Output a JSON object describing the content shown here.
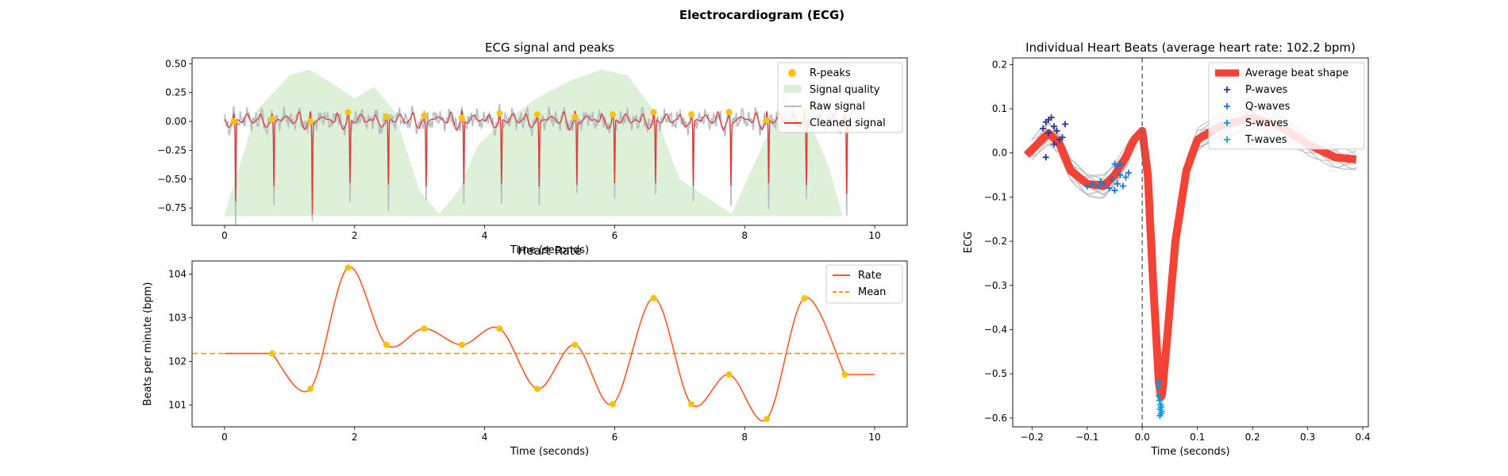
{
  "figure": {
    "title": "Electrocardiogram (ECG)"
  },
  "chart_data": [
    {
      "type": "line",
      "title": "ECG signal and peaks",
      "xlabel": "Time (seconds)",
      "ylabel": "",
      "xlim": [
        -0.5,
        10.5
      ],
      "ylim": [
        -0.9,
        0.55
      ],
      "xticks": [
        0,
        2,
        4,
        6,
        8,
        10
      ],
      "yticks": [
        -0.75,
        -0.5,
        -0.25,
        0.0,
        0.25,
        0.5
      ],
      "ytick_labels": [
        "−0.75",
        "−0.50",
        "−0.25",
        "0.00",
        "0.25",
        "0.50"
      ],
      "legend": {
        "position": "top-right",
        "entries": [
          "R-peaks",
          "Signal quality",
          "Raw signal",
          "Cleaned signal"
        ]
      },
      "colors": {
        "rpeaks": "#FFC200",
        "quality": "#DFF0D8",
        "raw": "#B0BEC5",
        "cleaned": "#E53935"
      },
      "r_peaks_x": [
        0.14,
        0.73,
        1.32,
        1.9,
        2.49,
        3.07,
        3.65,
        4.23,
        4.81,
        5.39,
        5.97,
        6.6,
        7.18,
        7.76,
        8.34,
        8.92,
        9.54
      ],
      "r_peaks_y": [
        0.0,
        0.02,
        0.0,
        0.08,
        0.04,
        0.05,
        0.03,
        0.07,
        0.06,
        0.04,
        0.06,
        0.08,
        0.06,
        0.08,
        0.01,
        0.09,
        0.1
      ],
      "r_peak_depth": [
        -0.7,
        -0.55,
        -0.8,
        -0.55,
        -0.55,
        -0.55,
        -0.55,
        -0.55,
        -0.55,
        -0.55,
        -0.55,
        -0.55,
        -0.55,
        -0.55,
        -0.55,
        -0.55,
        -0.62
      ],
      "signal_quality": {
        "x": [
          0,
          0.5,
          1.0,
          1.3,
          1.6,
          2.0,
          2.3,
          2.6,
          3.0,
          3.3,
          3.6,
          3.9,
          4.3,
          4.8,
          5.3,
          5.8,
          6.2,
          6.6,
          7.0,
          7.4,
          7.8,
          8.2,
          8.6,
          9.0,
          9.3,
          9.5
        ],
        "y": [
          -0.8,
          0.1,
          0.4,
          0.45,
          0.35,
          0.2,
          0.3,
          0.1,
          -0.6,
          -0.8,
          -0.6,
          -0.2,
          0.0,
          0.2,
          0.35,
          0.45,
          0.4,
          0.1,
          -0.5,
          -0.65,
          -0.8,
          -0.3,
          0.2,
          0.0,
          -0.4,
          -0.8
        ]
      }
    },
    {
      "type": "line",
      "title": "Heart Rate",
      "xlabel": "Time (seconds)",
      "ylabel": "Beats per minute (bpm)",
      "xlim": [
        -0.5,
        10.5
      ],
      "ylim": [
        100.5,
        104.3
      ],
      "xticks": [
        0,
        2,
        4,
        6,
        8,
        10
      ],
      "yticks": [
        101,
        102,
        103,
        104
      ],
      "legend": {
        "position": "top-right",
        "entries": [
          "Rate",
          "Mean"
        ]
      },
      "colors": {
        "rate": "#FF5722",
        "mean": "#FF9800",
        "points": "#FFC200"
      },
      "mean": 102.18,
      "points_x": [
        0.73,
        1.32,
        1.9,
        2.49,
        3.07,
        3.65,
        4.23,
        4.81,
        5.39,
        5.97,
        6.6,
        7.18,
        7.76,
        8.34,
        8.92,
        9.54
      ],
      "points_y": [
        102.18,
        101.37,
        104.15,
        102.38,
        102.75,
        102.38,
        102.75,
        101.37,
        102.38,
        101.02,
        103.45,
        101.02,
        101.7,
        100.68,
        103.45,
        101.7
      ],
      "start": [
        0,
        102.18
      ],
      "end": [
        10,
        101.7
      ]
    },
    {
      "type": "line",
      "title": "Individual Heart Beats (average heart rate: 102.2 bpm)",
      "xlabel": "Time (seconds)",
      "ylabel": "ECG",
      "xlim": [
        -0.235,
        0.41
      ],
      "ylim": [
        -0.62,
        0.215
      ],
      "xticks": [
        -0.2,
        -0.1,
        0.0,
        0.1,
        0.2,
        0.3,
        0.4
      ],
      "xtick_labels": [
        "−0.2",
        "−0.1",
        "0.0",
        "0.1",
        "0.2",
        "0.3",
        "0.4"
      ],
      "yticks": [
        -0.6,
        -0.5,
        -0.4,
        -0.3,
        -0.2,
        -0.1,
        0.0,
        0.1,
        0.2
      ],
      "ytick_labels": [
        "−0.6",
        "−0.5",
        "−0.4",
        "−0.3",
        "−0.2",
        "−0.1",
        "0.0",
        "0.1",
        "0.2"
      ],
      "legend": {
        "position": "top-right",
        "entries": [
          "Average beat shape",
          "P-waves",
          "Q-waves",
          "S-waves",
          "T-waves"
        ]
      },
      "colors": {
        "average": "#F44336",
        "beats": "#BDBDBD",
        "p": "#283593",
        "q": "#1976D2",
        "s": "#039BE5",
        "t": "#00ACC1",
        "vline": "#666666"
      },
      "average_x": [
        -0.21,
        -0.19,
        -0.17,
        -0.15,
        -0.13,
        -0.1,
        -0.07,
        -0.05,
        -0.03,
        -0.015,
        0.0,
        0.01,
        0.02,
        0.03,
        0.035,
        0.045,
        0.06,
        0.08,
        0.1,
        0.14,
        0.2,
        0.25,
        0.3,
        0.35,
        0.39
      ],
      "average_y": [
        -0.005,
        0.02,
        0.045,
        0.02,
        -0.04,
        -0.07,
        -0.075,
        -0.05,
        -0.01,
        0.03,
        0.05,
        -0.05,
        -0.3,
        -0.52,
        -0.56,
        -0.42,
        -0.2,
        -0.04,
        0.03,
        0.06,
        0.08,
        0.06,
        0.02,
        -0.01,
        -0.015
      ],
      "p_waves": [
        [
          -0.175,
          0.07
        ],
        [
          -0.17,
          0.075
        ],
        [
          -0.165,
          0.08
        ],
        [
          -0.16,
          0.06
        ],
        [
          -0.155,
          0.05
        ],
        [
          -0.17,
          0.045
        ],
        [
          -0.18,
          0.055
        ],
        [
          -0.15,
          0.03
        ],
        [
          -0.16,
          0.02
        ],
        [
          -0.145,
          0.035
        ],
        [
          -0.175,
          -0.01
        ],
        [
          -0.14,
          0.065
        ]
      ],
      "q_waves": [
        [
          -0.1,
          -0.075
        ],
        [
          -0.09,
          -0.07
        ],
        [
          -0.08,
          -0.075
        ],
        [
          -0.075,
          -0.065
        ],
        [
          -0.07,
          -0.07
        ],
        [
          -0.06,
          -0.08
        ],
        [
          -0.055,
          -0.06
        ],
        [
          -0.05,
          -0.085
        ],
        [
          -0.045,
          -0.07
        ],
        [
          -0.04,
          -0.05
        ],
        [
          -0.035,
          -0.075
        ],
        [
          -0.03,
          -0.055
        ],
        [
          -0.05,
          -0.025
        ],
        [
          -0.045,
          -0.03
        ],
        [
          -0.04,
          -0.025
        ],
        [
          -0.025,
          -0.045
        ]
      ],
      "s_waves": [
        [
          0.03,
          -0.55
        ],
        [
          0.032,
          -0.58
        ],
        [
          0.034,
          -0.59
        ],
        [
          0.03,
          -0.53
        ],
        [
          0.033,
          -0.57
        ],
        [
          0.031,
          -0.56
        ],
        [
          0.035,
          -0.585
        ],
        [
          0.029,
          -0.52
        ],
        [
          0.032,
          -0.595
        ],
        [
          0.034,
          -0.575
        ]
      ],
      "t_waves": []
    }
  ]
}
